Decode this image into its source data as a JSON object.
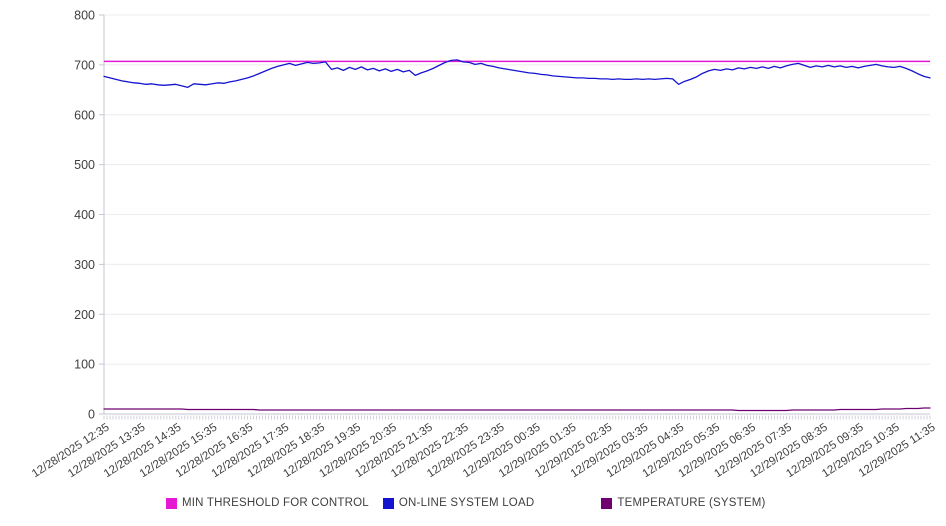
{
  "chart_data": {
    "type": "line",
    "title": "",
    "xlabel": "",
    "ylabel": "",
    "ylim": [
      0,
      800
    ],
    "y_ticks": [
      0,
      100,
      200,
      300,
      400,
      500,
      600,
      700,
      800
    ],
    "x_tick_labels": [
      "12/28/2025 12:35",
      "12/28/2025 13:35",
      "12/28/2025 14:35",
      "12/28/2025 15:35",
      "12/28/2025 16:35",
      "12/28/2025 17:35",
      "12/28/2025 18:35",
      "12/28/2025 19:35",
      "12/28/2025 20:35",
      "12/28/2025 21:35",
      "12/28/2025 22:35",
      "12/28/2025 23:35",
      "12/29/2025 00:35",
      "12/29/2025 01:35",
      "12/29/2025 02:35",
      "12/29/2025 03:35",
      "12/29/2025 04:35",
      "12/29/2025 05:35",
      "12/29/2025 06:35",
      "12/29/2025 07:35",
      "12/29/2025 08:35",
      "12/29/2025 09:35",
      "12/29/2025 10:35",
      "12/29/2025 11:35"
    ],
    "x_minor_tick_count": 277,
    "grid": "horizontal",
    "legend_position": "bottom",
    "axis_color": "#c6c6d0",
    "grid_color": "#ececec",
    "tick_label_color": "#3f3f3f",
    "series": [
      {
        "name": "MIN THRESHOLD FOR CONTROL",
        "color": "#e519d4",
        "style": "threshold",
        "value": 707
      },
      {
        "name": "ON-LINE SYSTEM LOAD",
        "color": "#1414cf",
        "style": "line",
        "values": [
          677,
          674,
          671,
          668,
          666,
          664,
          663,
          661,
          662,
          660,
          659,
          660,
          661,
          658,
          655,
          662,
          661,
          660,
          662,
          664,
          663,
          666,
          668,
          671,
          674,
          678,
          683,
          688,
          693,
          697,
          700,
          703,
          699,
          702,
          705,
          703,
          704,
          706,
          691,
          694,
          689,
          695,
          691,
          696,
          690,
          693,
          688,
          692,
          687,
          691,
          686,
          689,
          679,
          684,
          688,
          693,
          699,
          705,
          709,
          710,
          706,
          705,
          701,
          703,
          699,
          697,
          694,
          692,
          690,
          688,
          686,
          684,
          683,
          681,
          680,
          678,
          677,
          676,
          675,
          674,
          674,
          673,
          673,
          672,
          672,
          671,
          672,
          671,
          671,
          672,
          671,
          672,
          671,
          672,
          673,
          672,
          661,
          667,
          671,
          676,
          683,
          688,
          691,
          689,
          692,
          690,
          694,
          692,
          695,
          693,
          696,
          693,
          697,
          694,
          698,
          701,
          703,
          699,
          695,
          698,
          696,
          699,
          696,
          698,
          695,
          697,
          694,
          697,
          699,
          701,
          698,
          696,
          695,
          697,
          693,
          688,
          682,
          677,
          674
        ]
      },
      {
        "name": "TEMPERATURE (SYSTEM)",
        "color": "#700070",
        "style": "line",
        "values": [
          10,
          10,
          10,
          10,
          10,
          10,
          10,
          10,
          10,
          10,
          10,
          10,
          10,
          10,
          9,
          9,
          9,
          9,
          9,
          9,
          9,
          9,
          9,
          9,
          9,
          9,
          8,
          8,
          8,
          8,
          8,
          8,
          8,
          8,
          8,
          8,
          8,
          8,
          8,
          8,
          8,
          8,
          8,
          8,
          8,
          8,
          8,
          8,
          8,
          8,
          8,
          8,
          8,
          8,
          8,
          8,
          8,
          8,
          8,
          8,
          8,
          8,
          8,
          8,
          8,
          8,
          8,
          8,
          8,
          8,
          8,
          8,
          8,
          8,
          8,
          8,
          8,
          8,
          8,
          8,
          8,
          8,
          8,
          8,
          8,
          8,
          8,
          8,
          8,
          8,
          8,
          8,
          8,
          8,
          8,
          8,
          8,
          8,
          8,
          8,
          8,
          8,
          8,
          8,
          8,
          8,
          7,
          7,
          7,
          7,
          7,
          7,
          7,
          7,
          7,
          8,
          8,
          8,
          8,
          8,
          8,
          8,
          8,
          9,
          9,
          9,
          9,
          9,
          9,
          9,
          10,
          10,
          10,
          10,
          11,
          11,
          11,
          12,
          12
        ]
      }
    ]
  }
}
